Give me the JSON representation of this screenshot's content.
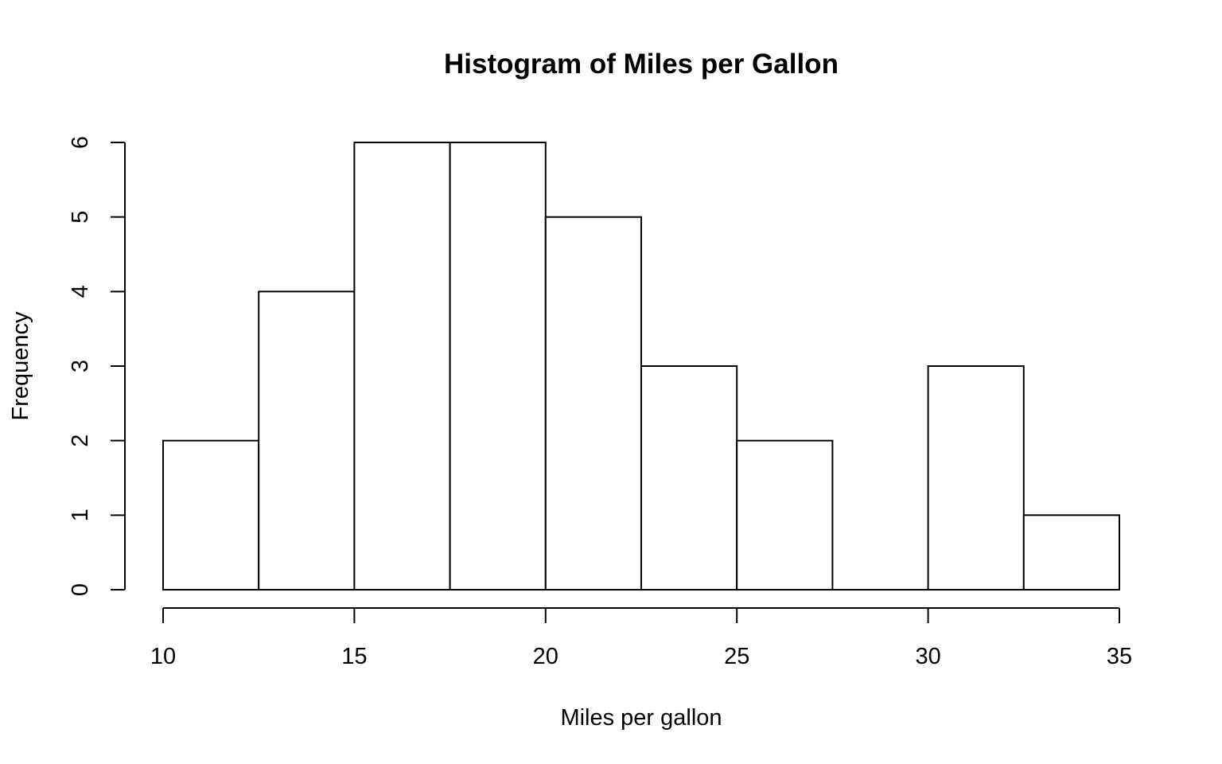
{
  "chart_data": {
    "type": "bar",
    "subtype": "histogram",
    "title": "Histogram of Miles per Gallon",
    "xlabel": "Miles per gallon",
    "ylabel": "Frequency",
    "bins": [
      {
        "start": 10.0,
        "end": 12.5,
        "count": 2
      },
      {
        "start": 12.5,
        "end": 15.0,
        "count": 4
      },
      {
        "start": 15.0,
        "end": 17.5,
        "count": 6
      },
      {
        "start": 17.5,
        "end": 20.0,
        "count": 6
      },
      {
        "start": 20.0,
        "end": 22.5,
        "count": 5
      },
      {
        "start": 22.5,
        "end": 25.0,
        "count": 3
      },
      {
        "start": 25.0,
        "end": 27.5,
        "count": 2
      },
      {
        "start": 27.5,
        "end": 30.0,
        "count": 0
      },
      {
        "start": 30.0,
        "end": 32.5,
        "count": 3
      },
      {
        "start": 32.5,
        "end": 35.0,
        "count": 1
      }
    ],
    "xlim": [
      10,
      35
    ],
    "ylim": [
      0,
      6
    ],
    "x_ticks": [
      10,
      15,
      20,
      25,
      30,
      35
    ],
    "y_ticks": [
      0,
      1,
      2,
      3,
      4,
      5,
      6
    ],
    "grid": false,
    "legend": "none",
    "bar_fill": "#ffffff",
    "bar_stroke": "#000000"
  }
}
